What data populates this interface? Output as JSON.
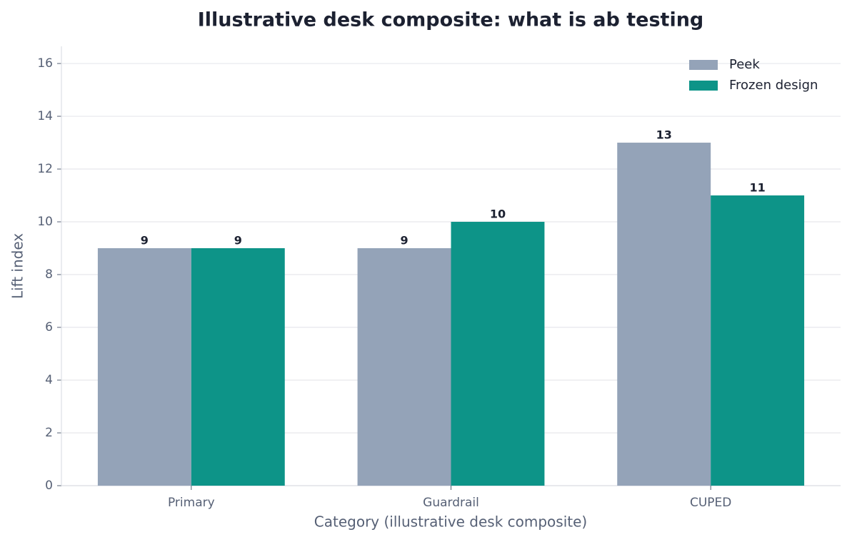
{
  "chart_data": {
    "type": "bar",
    "title": "Illustrative desk composite: what is ab testing",
    "xlabel": "Category (illustrative desk composite)",
    "ylabel": "Lift index",
    "categories": [
      "Primary",
      "Guardrail",
      "CUPED"
    ],
    "series": [
      {
        "name": "Peek",
        "color": "#94a3b8",
        "values": [
          9,
          9,
          13
        ]
      },
      {
        "name": "Frozen design",
        "color": "#0d9488",
        "values": [
          9,
          10,
          11
        ]
      }
    ],
    "ylim": [
      0,
      16.65
    ],
    "yticks": [
      0,
      2,
      4,
      6,
      8,
      10,
      12,
      14,
      16
    ],
    "grid": true,
    "legend": "upper-right"
  }
}
